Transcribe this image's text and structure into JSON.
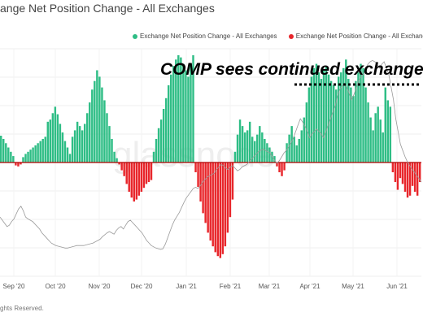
{
  "header": {
    "title": "ange Net Position Change - All Exchanges"
  },
  "footer": {
    "text": "ghts Reserved."
  },
  "colors": {
    "positive": "#2ebd85",
    "negative": "#e8262b",
    "price_line": "#9a9a9a",
    "baseline": "#b00000"
  },
  "chart_data": {
    "type": "bar",
    "title": "ange Net Position Change - All Exchanges",
    "annotation": "COMP sees continued exchange in",
    "watermark": "glassnode",
    "legend": {
      "placement": "top-right",
      "entries": [
        {
          "label": "Exchange Net Position Change - All Exchanges",
          "color": "#2ebd85"
        },
        {
          "label": "Exchange Net Position Change - All Exchanges",
          "color": "#e8262b"
        }
      ]
    },
    "x_ticks": [
      "Sep '20",
      "Oct '20",
      "Nov '20",
      "Dec '20",
      "Jan '21",
      "Feb '21",
      "Mar '21",
      "Apr '21",
      "May '21",
      "Jun '21"
    ],
    "grid": true,
    "series": [
      {
        "type": "bar",
        "description": "net position change, green above zero, red below zero",
        "values": [
          25,
          22,
          18,
          14,
          10,
          6,
          -3,
          -4,
          -2,
          5,
          8,
          10,
          12,
          14,
          16,
          18,
          20,
          22,
          24,
          38,
          40,
          46,
          52,
          45,
          36,
          28,
          20,
          14,
          8,
          24,
          30,
          38,
          34,
          30,
          36,
          46,
          56,
          68,
          76,
          86,
          80,
          70,
          58,
          46,
          34,
          22,
          10,
          4,
          -2,
          -8,
          -14,
          -22,
          -30,
          -36,
          -40,
          -38,
          -34,
          -30,
          -26,
          -22,
          -20,
          -18,
          10,
          22,
          32,
          40,
          50,
          60,
          72,
          82,
          90,
          96,
          100,
          98,
          92,
          86,
          80,
          92,
          100,
          -10,
          -25,
          -40,
          -52,
          -62,
          -72,
          -80,
          -86,
          -92,
          -96,
          -98,
          -94,
          -86,
          -72,
          -56,
          -38,
          10,
          26,
          40,
          34,
          28,
          30,
          38,
          24,
          20,
          26,
          34,
          28,
          22,
          18,
          14,
          10,
          6,
          -4,
          -10,
          -14,
          -8,
          18,
          26,
          34,
          24,
          16,
          22,
          30,
          42,
          56,
          70,
          80,
          88,
          92,
          84,
          78,
          86,
          90,
          82,
          76,
          72,
          68,
          80,
          84,
          88,
          96,
          78,
          70,
          62,
          76,
          84,
          92,
          88,
          70,
          56,
          42,
          30,
          46,
          52,
          40,
          28,
          70,
          58,
          52,
          -10,
          -20,
          -28,
          -16,
          -22,
          -30,
          -36,
          -34,
          -24,
          -30,
          -34,
          -20
        ]
      },
      {
        "type": "line",
        "description": "COMP price (unlabeled, relative scale)",
        "values": [
          0.55,
          0.5,
          0.45,
          0.4,
          0.42,
          0.48,
          0.52,
          0.6,
          0.68,
          0.72,
          0.65,
          0.55,
          0.52,
          0.5,
          0.48,
          0.44,
          0.4,
          0.36,
          0.3,
          0.26,
          0.22,
          0.18,
          0.14,
          0.12,
          0.1,
          0.09,
          0.08,
          0.07,
          0.06,
          0.06,
          0.07,
          0.08,
          0.09,
          0.1,
          0.1,
          0.1,
          0.1,
          0.11,
          0.12,
          0.13,
          0.14,
          0.16,
          0.18,
          0.2,
          0.24,
          0.27,
          0.3,
          0.32,
          0.3,
          0.28,
          0.34,
          0.38,
          0.4,
          0.36,
          0.42,
          0.48,
          0.5,
          0.46,
          0.42,
          0.38,
          0.34,
          0.3,
          0.24,
          0.18,
          0.14,
          0.1,
          0.08,
          0.06,
          0.05,
          0.04,
          0.05,
          0.12,
          0.22,
          0.32,
          0.42,
          0.5,
          0.56,
          0.62,
          0.7,
          0.78,
          0.85,
          0.9,
          0.95,
          1.0,
          1.02,
          1.0,
          1.04,
          1.1,
          1.14,
          1.18,
          1.2,
          1.22,
          1.24,
          1.3,
          1.34,
          1.38,
          1.36,
          1.32,
          1.3,
          1.34,
          1.36,
          1.32,
          1.28,
          1.3,
          1.34,
          1.36,
          1.38,
          1.42,
          1.46,
          1.5,
          1.54,
          1.58,
          1.6,
          1.62,
          1.6,
          1.58,
          1.56,
          1.5,
          1.44,
          1.4,
          1.44,
          1.5,
          1.56,
          1.6,
          1.66,
          1.72,
          1.8,
          1.9,
          2.0,
          2.1,
          2.05,
          1.98,
          1.9,
          1.8,
          1.86,
          1.9,
          1.94,
          1.9,
          1.86,
          1.8,
          1.9,
          2.0,
          2.1,
          2.2,
          2.3,
          2.46,
          2.56,
          2.62,
          2.66,
          2.6,
          2.5,
          2.4,
          2.48,
          2.58,
          2.7,
          2.76,
          2.8,
          2.88,
          2.96,
          3.0,
          3.02,
          3.0,
          2.96,
          2.9,
          2.96,
          3.0,
          2.9,
          2.8,
          2.6,
          2.4,
          2.1,
          1.9,
          1.7,
          1.6,
          1.5,
          1.42,
          1.36,
          1.3,
          1.26,
          1.2,
          1.16,
          1.1
        ]
      }
    ]
  }
}
